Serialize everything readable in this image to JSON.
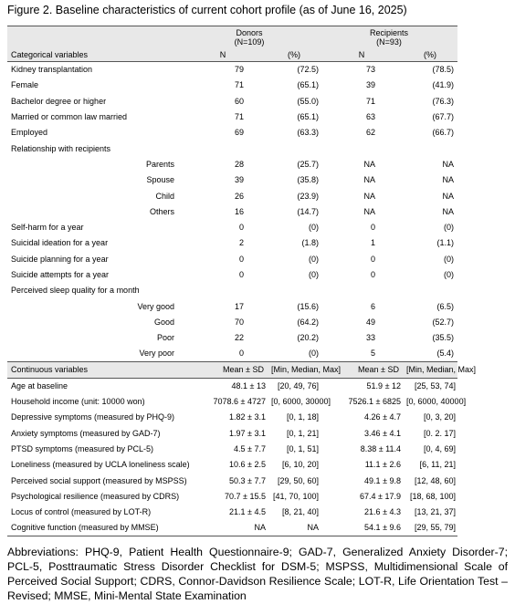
{
  "title": "Figure 2. Baseline characteristics of current cohort profile (as of June 16, 2025)",
  "table": {
    "groups": [
      {
        "name": "Donors",
        "n": "(N=109)"
      },
      {
        "name": "Recipients",
        "n": "(N=93)"
      }
    ],
    "categorical_header": [
      "Categorical variables",
      "N",
      "(%)",
      "N",
      "(%)"
    ],
    "categorical_rows": [
      [
        "Kidney transplantation",
        "79",
        "(72.5)",
        "73",
        "(78.5)"
      ],
      [
        "Female",
        "71",
        "(65.1)",
        "39",
        "(41.9)"
      ],
      [
        "Bachelor degree or higher",
        "60",
        "(55.0)",
        "71",
        "(76.3)"
      ],
      [
        "Married or common law married",
        "71",
        "(65.1)",
        "63",
        "(67.7)"
      ],
      [
        "Employed",
        "69",
        "(63.3)",
        "62",
        "(66.7)"
      ],
      {
        "label": "Relationship with recipients",
        "items": [
          [
            "Parents",
            "28",
            "(25.7)",
            "NA",
            "NA"
          ],
          [
            "Spouse",
            "39",
            "(35.8)",
            "NA",
            "NA"
          ],
          [
            "Child",
            "26",
            "(23.9)",
            "NA",
            "NA"
          ],
          [
            "Others",
            "16",
            "(14.7)",
            "NA",
            "NA"
          ]
        ]
      },
      [
        "Self-harm for a year",
        "0",
        "(0)",
        "0",
        "(0)"
      ],
      [
        "Suicidal ideation for a year",
        "2",
        "(1.8)",
        "1",
        "(1.1)"
      ],
      [
        "Suicide planning for a year",
        "0",
        "(0)",
        "0",
        "(0)"
      ],
      [
        "Suicide attempts for a year",
        "0",
        "(0)",
        "0",
        "(0)"
      ],
      {
        "label": "Perceived sleep quality for a month",
        "items": [
          [
            "Very good",
            "17",
            "(15.6)",
            "6",
            "(6.5)"
          ],
          [
            "Good",
            "70",
            "(64.2)",
            "49",
            "(52.7)"
          ],
          [
            "Poor",
            "22",
            "(20.2)",
            "33",
            "(35.5)"
          ],
          [
            "Very poor",
            "0",
            "(0)",
            "5",
            "(5.4)"
          ]
        ]
      }
    ],
    "continuous_header": [
      "Continuous variables",
      "Mean ± SD",
      "[Min, Median, Max]",
      "Mean ± SD",
      "[Min, Median, Max]"
    ],
    "continuous_rows": [
      [
        "Age at baseline",
        "48.1 ± 13",
        "[20, 49, 76]",
        "51.9 ± 12",
        "[25, 53, 74]"
      ],
      [
        "Household income (unit: 10000 won)",
        "7078.6 ± 4727",
        "[0, 6000, 30000]",
        "7526.1 ± 6825",
        "[0, 6000, 40000]"
      ],
      [
        "Depressive symptoms (measured by PHQ-9)",
        "1.82 ± 3.1",
        "[0, 1, 18]",
        "4.26 ± 4.7",
        "[0, 3, 20]"
      ],
      [
        "Anxiety symptoms (measured by GAD-7)",
        "1.97 ± 3.1",
        "[0, 1, 21]",
        "3.46 ± 4.1",
        "[0. 2. 17]"
      ],
      [
        "PTSD symptoms (measured by PCL-5)",
        "4.5 ± 7.7",
        "[0, 1, 51]",
        "8.38 ± 11.4",
        "[0, 4, 69]"
      ],
      [
        "Loneliness (measured by UCLA loneliness scale)",
        "10.6 ± 2.5",
        "[6, 10, 20]",
        "11.1 ± 2.6",
        "[6, 11, 21]"
      ],
      [
        "Perceived social support (measured by MSPSS)",
        "50.3 ± 7.7",
        "[29, 50, 60]",
        "49.1 ± 9.8",
        "[12, 48, 60]"
      ],
      [
        "Psychological resilience (measured by CDRS)",
        "70.7 ± 15.5",
        "[41, 70, 100]",
        "67.4 ± 17.9",
        "[18, 68, 100]"
      ],
      [
        "Locus of control (measured by LOT-R)",
        "21.1 ± 4.5",
        "[8, 21, 40]",
        "21.6 ± 4.3",
        "[13, 21, 37]"
      ],
      [
        "Cognitive function (measured by MMSE)",
        "NA",
        "NA",
        "54.1 ± 9.6",
        "[29, 55, 79]"
      ]
    ]
  },
  "footnote": "Abbreviations: PHQ-9, Patient Health Questionnaire-9; GAD-7, Generalized Anxiety Disorder-7; PCL-5, Posttraumatic Stress Disorder Checklist for DSM-5; MSPSS, Multidimensional Scale of Perceived Social Support; CDRS, Connor-Davidson Resilience Scale; LOT-R, Life Orientation Test – Revised; MMSE, Mini-Mental State Examination"
}
